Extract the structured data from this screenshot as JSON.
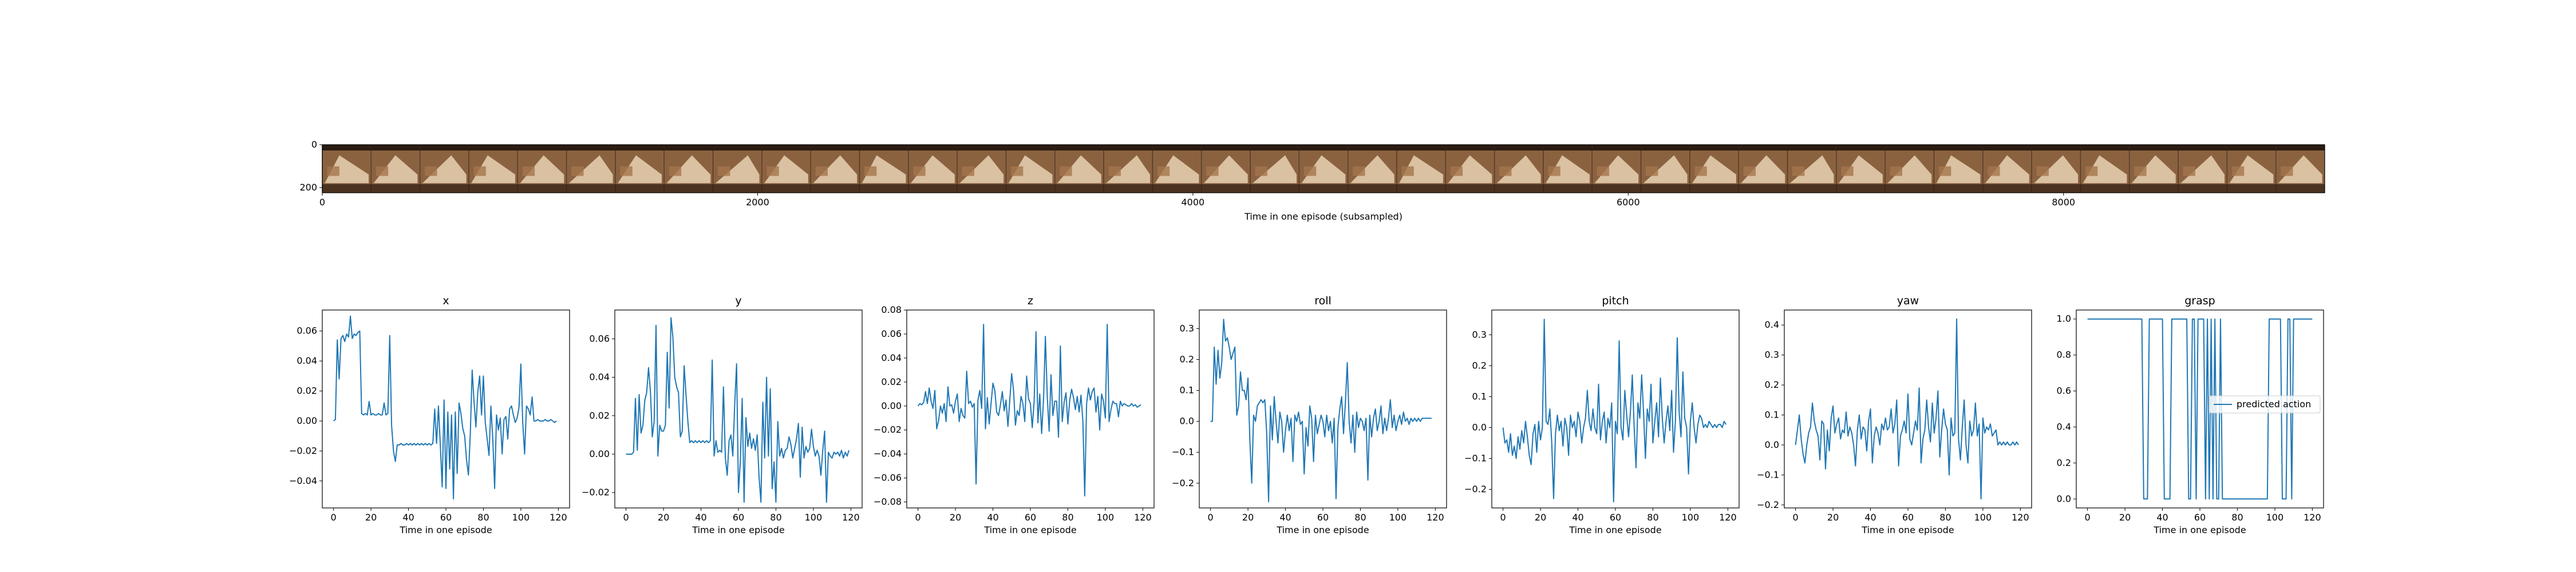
{
  "figure": {
    "strip": {
      "xlabel": "Time in one episode (subsampled)",
      "xticks": [
        0,
        2000,
        4000,
        6000,
        8000
      ],
      "yticks": [
        0,
        200
      ],
      "xlim": [
        0,
        9200
      ],
      "ylim": [
        0,
        224
      ],
      "frame_count": 41,
      "frame_colors": {
        "dark": "#2a1c12",
        "wood": "#8b6240",
        "light": "#e8d2b4",
        "mid": "#a4764c",
        "shadow": "#4a3320"
      }
    },
    "line_color": "#1f77b4",
    "legend_label": "predicted action"
  },
  "chart_data": [
    {
      "type": "line",
      "title": "x",
      "xlabel": "Time in one episode",
      "ylabel": "",
      "xlim": [
        -6,
        126
      ],
      "ylim": [
        -0.058,
        0.074
      ],
      "xticks": [
        0,
        20,
        40,
        60,
        80,
        100,
        120
      ],
      "yticks": [
        -0.04,
        -0.02,
        0.0,
        0.02,
        0.04,
        0.06
      ],
      "ytick_labels": [
        "−0.04",
        "−0.02",
        "0.00",
        "0.02",
        "0.04",
        "0.06"
      ],
      "values": [
        0.0,
        0.001,
        0.054,
        0.028,
        0.055,
        0.057,
        0.053,
        0.058,
        0.056,
        0.07,
        0.055,
        0.058,
        0.057,
        0.059,
        0.06,
        0.005,
        0.004,
        0.005,
        0.004,
        0.013,
        0.004,
        0.005,
        0.004,
        0.004,
        0.005,
        0.004,
        0.004,
        0.012,
        0.004,
        0.005,
        0.057,
        -0.003,
        -0.02,
        -0.027,
        -0.016,
        -0.016,
        -0.015,
        -0.016,
        -0.016,
        -0.015,
        -0.016,
        -0.015,
        -0.016,
        -0.015,
        -0.016,
        -0.015,
        -0.016,
        -0.015,
        -0.016,
        -0.015,
        -0.016,
        -0.015,
        -0.016,
        -0.015,
        0.008,
        -0.015,
        0.01,
        -0.016,
        -0.044,
        0.014,
        -0.045,
        0.006,
        -0.032,
        0.004,
        -0.052,
        0.006,
        -0.035,
        0.012,
        0.005,
        -0.005,
        -0.01,
        -0.026,
        -0.036,
        -0.009,
        0.034,
        0.013,
        -0.004,
        0.019,
        0.03,
        0.004,
        0.03,
        -0.001,
        -0.012,
        -0.023,
        0.01,
        -0.012,
        -0.045,
        0.004,
        -0.006,
        0.002,
        -0.022,
        0.001,
        0.003,
        -0.012,
        0.008,
        0.01,
        0.004,
        -0.001,
        0.002,
        0.009,
        0.038,
        -0.001,
        -0.022,
        0.01,
        0.008,
        0.004,
        0.016,
        0.0,
        0.0,
        0.001,
        0.0,
        0.0,
        0.0,
        0.001,
        0.0,
        0.0,
        0.001,
        0.0,
        -0.001,
        0.0
      ]
    },
    {
      "type": "line",
      "title": "y",
      "xlabel": "Time in one episode",
      "ylabel": "",
      "xlim": [
        -6,
        126
      ],
      "ylim": [
        -0.028,
        0.075
      ],
      "xticks": [
        0,
        20,
        40,
        60,
        80,
        100,
        120
      ],
      "yticks": [
        -0.02,
        0.0,
        0.02,
        0.04,
        0.06
      ],
      "ytick_labels": [
        "−0.02",
        "0.00",
        "0.02",
        "0.04",
        "0.06"
      ],
      "values": [
        0.0,
        0.0,
        0.0,
        0.0,
        0.001,
        0.029,
        0.002,
        0.031,
        0.011,
        0.015,
        0.028,
        0.032,
        0.045,
        0.033,
        0.009,
        0.017,
        0.067,
        -0.001,
        0.015,
        0.012,
        0.012,
        0.015,
        0.053,
        0.024,
        0.071,
        0.061,
        0.04,
        0.035,
        0.032,
        0.009,
        0.012,
        0.046,
        0.031,
        0.017,
        0.006,
        0.007,
        0.006,
        0.007,
        0.006,
        0.007,
        0.006,
        0.007,
        0.006,
        0.007,
        0.006,
        0.007,
        0.049,
        -0.001,
        0.007,
        0.001,
        0.002,
        0.001,
        0.035,
        -0.002,
        -0.011,
        0.007,
        0.01,
        -0.001,
        0.026,
        0.047,
        -0.02,
        -0.004,
        0.029,
        -0.025,
        0.019,
        0.004,
        0.011,
        0.003,
        0.008,
        0.002,
        0.01,
        -0.012,
        -0.025,
        0.027,
        -0.002,
        0.04,
        -0.001,
        0.034,
        -0.018,
        -0.004,
        -0.025,
        0.017,
        -0.001,
        0.003,
        -0.002,
        0.002,
        0.003,
        0.009,
        0.005,
        -0.002,
        0.003,
        0.008,
        0.016,
        -0.012,
        0.014,
        -0.002,
        0.004,
        0.001,
        0.003,
        0.013,
        0.004,
        -0.001,
        0.002,
        -0.001,
        -0.011,
        0.002,
        0.012,
        -0.025,
        0.001,
        -0.001,
        -0.002,
        0.001,
        0.0,
        0.001,
        -0.001,
        0.002,
        -0.002,
        0.001,
        -0.001,
        0.002
      ]
    },
    {
      "type": "line",
      "title": "z",
      "xlabel": "Time in one episode",
      "ylabel": "",
      "xlim": [
        -6,
        126
      ],
      "ylim": [
        -0.085,
        0.08
      ],
      "xticks": [
        0,
        20,
        40,
        60,
        80,
        100,
        120
      ],
      "yticks": [
        -0.08,
        -0.06,
        -0.04,
        -0.02,
        0.0,
        0.02,
        0.04,
        0.06,
        0.08
      ],
      "ytick_labels": [
        "−0.08",
        "−0.06",
        "−0.04",
        "−0.02",
        "0.00",
        "0.02",
        "0.04",
        "0.06",
        "0.08"
      ],
      "values": [
        0.0,
        0.002,
        0.001,
        0.003,
        0.012,
        0.002,
        0.015,
        0.004,
        -0.002,
        0.013,
        -0.019,
        -0.012,
        0.0,
        -0.006,
        0.002,
        -0.013,
        0.016,
        0.0,
        0.001,
        -0.006,
        0.004,
        0.01,
        -0.013,
        -0.002,
        -0.008,
        -0.01,
        0.029,
        0.002,
        0.004,
        -0.001,
        0.002,
        -0.065,
        0.005,
        0.013,
        -0.002,
        0.068,
        -0.019,
        0.007,
        -0.015,
        0.002,
        0.019,
        0.013,
        -0.005,
        -0.008,
        0.001,
        0.012,
        -0.004,
        0.005,
        -0.017,
        0.005,
        0.027,
        0.013,
        -0.016,
        -0.004,
        -0.008,
        0.008,
        0.002,
        -0.013,
        0.025,
        0.006,
        0.002,
        -0.018,
        0.004,
        0.062,
        -0.014,
        0.01,
        -0.023,
        0.005,
        0.058,
        0.008,
        -0.021,
        0.026,
        -0.008,
        0.004,
        0.004,
        -0.026,
        0.05,
        -0.013,
        0.003,
        0.011,
        -0.015,
        0.005,
        0.014,
        0.007,
        -0.003,
        0.008,
        -0.005,
        0.009,
        -0.012,
        -0.075,
        0.002,
        0.015,
        0.005,
        0.012,
        0.015,
        -0.005,
        0.008,
        -0.02,
        0.01,
        0.004,
        -0.01,
        0.068,
        -0.013,
        -0.003,
        0.004,
        0.002,
        0.002,
        -0.009,
        0.004,
        0.0,
        0.002,
        0.001,
        0.0,
        0.0,
        0.002,
        0.0,
        0.001,
        -0.001,
        0.0,
        0.001
      ]
    },
    {
      "type": "line",
      "title": "roll",
      "xlabel": "Time in one episode",
      "ylabel": "",
      "xlim": [
        -6,
        126
      ],
      "ylim": [
        -0.28,
        0.36
      ],
      "xticks": [
        0,
        20,
        40,
        60,
        80,
        100,
        120
      ],
      "yticks": [
        -0.2,
        -0.1,
        0.0,
        0.1,
        0.2,
        0.3
      ],
      "ytick_labels": [
        "−0.2",
        "−0.1",
        "0.0",
        "0.1",
        "0.2",
        "0.3"
      ],
      "values": [
        0.0,
        0.0,
        0.24,
        0.12,
        0.23,
        0.14,
        0.19,
        0.33,
        0.26,
        0.27,
        0.24,
        0.2,
        0.22,
        0.24,
        0.02,
        0.05,
        0.16,
        0.1,
        0.1,
        0.07,
        0.14,
        -0.06,
        -0.2,
        0.02,
        0.0,
        0.05,
        0.06,
        0.07,
        0.06,
        0.07,
        -0.04,
        -0.26,
        0.05,
        -0.06,
        0.08,
        0.0,
        -0.07,
        0.03,
        0.0,
        -0.1,
        -0.03,
        0.02,
        -0.03,
        0.01,
        -0.13,
        0.02,
        0.0,
        0.03,
        -0.01,
        0.0,
        -0.17,
        -0.02,
        -0.08,
        0.05,
        0.01,
        -0.13,
        0.02,
        -0.04,
        -0.01,
        0.02,
        0.0,
        -0.05,
        0.02,
        -0.03,
        0.0,
        -0.07,
        0.01,
        -0.25,
        -0.02,
        0.04,
        0.08,
        -0.04,
        0.06,
        0.19,
        0.0,
        -0.07,
        0.02,
        -0.1,
        0.03,
        -0.02,
        0.01,
        0.0,
        -0.03,
        0.01,
        -0.19,
        0.02,
        -0.05,
        0.01,
        0.04,
        -0.03,
        0.0,
        0.05,
        -0.04,
        0.01,
        -0.03,
        0.01,
        0.07,
        -0.02,
        0.02,
        -0.03,
        0.0,
        0.02,
        -0.01,
        0.03,
        0.0,
        0.01,
        -0.01,
        0.01,
        0.0,
        0.01,
        0.0,
        0.01,
        0.0,
        0.01,
        0.01,
        0.01,
        0.01,
        0.01,
        0.01
      ]
    },
    {
      "type": "line",
      "title": "pitch",
      "xlabel": "Time in one episode",
      "ylabel": "",
      "xlim": [
        -6,
        126
      ],
      "ylim": [
        -0.26,
        0.38
      ],
      "xticks": [
        0,
        20,
        40,
        60,
        80,
        100,
        120
      ],
      "yticks": [
        -0.2,
        -0.1,
        0.0,
        0.1,
        0.2,
        0.3
      ],
      "ytick_labels": [
        "−0.2",
        "−0.1",
        "0.0",
        "0.1",
        "0.2",
        "0.3"
      ],
      "values": [
        0.0,
        -0.05,
        -0.04,
        -0.08,
        -0.02,
        -0.09,
        -0.06,
        -0.1,
        -0.03,
        -0.07,
        -0.01,
        -0.05,
        0.02,
        -0.03,
        -0.09,
        -0.12,
        -0.02,
        0.01,
        -0.08,
        0.02,
        -0.04,
        0.0,
        0.35,
        0.02,
        0.01,
        0.06,
        -0.05,
        -0.23,
        -0.02,
        0.04,
        -0.01,
        0.02,
        -0.06,
        0.03,
        0.0,
        -0.09,
        0.04,
        0.0,
        0.02,
        -0.03,
        0.05,
        0.02,
        -0.05,
        0.0,
        0.03,
        0.12,
        0.02,
        -0.01,
        0.06,
        0.0,
        -0.02,
        0.14,
        -0.04,
        0.02,
        0.05,
        -0.05,
        0.03,
        0.0,
        0.08,
        -0.24,
        0.02,
        -0.02,
        0.28,
        0.0,
        -0.04,
        0.12,
        0.04,
        -0.03,
        0.05,
        0.17,
        0.0,
        -0.13,
        0.08,
        0.03,
        0.17,
        0.05,
        -0.1,
        0.06,
        0.02,
        0.14,
        -0.05,
        0.02,
        0.08,
        -0.03,
        0.16,
        0.03,
        -0.05,
        0.02,
        0.07,
        -0.01,
        0.12,
        -0.08,
        0.02,
        0.29,
        0.05,
        -0.03,
        0.18,
        0.03,
        0.0,
        -0.15,
        0.02,
        0.08,
        0.0,
        -0.05,
        0.01,
        0.04,
        0.03,
        0.0,
        0.01,
        0.0,
        0.02,
        0.01,
        0.0,
        0.01,
        0.0,
        0.01,
        0.01,
        0.0,
        0.02,
        0.01
      ]
    },
    {
      "type": "line",
      "title": "yaw",
      "xlabel": "Time in one episode",
      "ylabel": "",
      "xlim": [
        -6,
        126
      ],
      "ylim": [
        -0.21,
        0.45
      ],
      "xticks": [
        0,
        20,
        40,
        60,
        80,
        100,
        120
      ],
      "yticks": [
        -0.2,
        -0.1,
        0.0,
        0.1,
        0.2,
        0.3,
        0.4
      ],
      "ytick_labels": [
        "−0.2",
        "−0.1",
        "0.0",
        "0.1",
        "0.2",
        "0.3",
        "0.4"
      ],
      "values": [
        0.0,
        0.05,
        0.1,
        0.02,
        -0.03,
        -0.06,
        0.0,
        0.04,
        0.06,
        0.14,
        0.08,
        0.05,
        0.03,
        -0.05,
        0.08,
        0.07,
        -0.08,
        0.05,
        -0.02,
        0.09,
        0.13,
        0.04,
        0.07,
        0.09,
        0.02,
        0.05,
        0.04,
        0.11,
        0.03,
        0.06,
        0.04,
        0.0,
        -0.07,
        0.05,
        0.1,
        0.02,
        0.06,
        0.05,
        -0.02,
        0.08,
        0.12,
        -0.06,
        0.03,
        0.06,
        0.04,
        0.0,
        0.07,
        0.05,
        0.09,
        0.05,
        0.06,
        0.12,
        0.04,
        0.07,
        0.15,
        -0.07,
        0.03,
        0.05,
        0.08,
        0.04,
        0.17,
        0.02,
        0.0,
        0.04,
        0.08,
        0.05,
        0.19,
        -0.06,
        0.02,
        0.05,
        0.15,
        0.06,
        0.01,
        0.14,
        0.04,
        0.09,
        0.18,
        -0.04,
        0.05,
        0.12,
        0.07,
        0.05,
        -0.1,
        0.09,
        0.03,
        0.04,
        0.42,
        0.02,
        -0.05,
        0.06,
        0.15,
        0.0,
        -0.06,
        0.08,
        0.03,
        0.05,
        0.14,
        0.03,
        0.07,
        -0.18,
        0.09,
        0.04,
        0.06,
        0.05,
        0.07,
        0.03,
        0.04,
        0.05,
        0.0,
        0.01,
        0.0,
        0.01,
        0.0,
        0.01,
        0.0,
        0.0,
        0.01,
        0.0,
        0.01,
        0.0
      ]
    },
    {
      "type": "line",
      "title": "grasp",
      "xlabel": "Time in one episode",
      "ylabel": "",
      "xlim": [
        -6,
        126
      ],
      "ylim": [
        -0.05,
        1.05
      ],
      "xticks": [
        0,
        20,
        40,
        60,
        80,
        100,
        120
      ],
      "yticks": [
        0.0,
        0.2,
        0.4,
        0.6,
        0.8,
        1.0
      ],
      "ytick_labels": [
        "0.0",
        "0.2",
        "0.4",
        "0.6",
        "0.8",
        "1.0"
      ],
      "legend": [
        "predicted action"
      ],
      "legend_position": "right",
      "values": [
        1,
        1,
        1,
        1,
        1,
        1,
        1,
        1,
        1,
        1,
        1,
        1,
        1,
        1,
        1,
        1,
        1,
        1,
        1,
        1,
        1,
        1,
        1,
        1,
        1,
        1,
        1,
        1,
        1,
        1,
        0,
        0,
        0,
        1,
        1,
        1,
        1,
        1,
        1,
        1,
        1,
        0,
        0,
        0,
        0,
        1,
        1,
        1,
        1,
        1,
        1,
        1,
        1,
        1,
        0,
        0,
        1,
        1,
        0,
        1,
        1,
        1,
        1,
        0,
        1,
        0,
        1,
        0,
        1,
        0,
        0,
        1,
        0,
        0,
        0,
        0,
        0,
        0,
        0,
        0,
        0,
        0,
        0,
        0,
        0,
        0,
        0,
        0,
        0,
        0,
        0,
        0,
        0,
        0,
        0,
        0,
        0,
        1,
        1,
        1,
        1,
        1,
        1,
        1,
        0,
        0,
        0,
        1,
        1,
        0,
        1,
        1,
        1,
        1,
        1,
        1,
        1,
        1,
        1,
        1,
        1
      ]
    }
  ]
}
